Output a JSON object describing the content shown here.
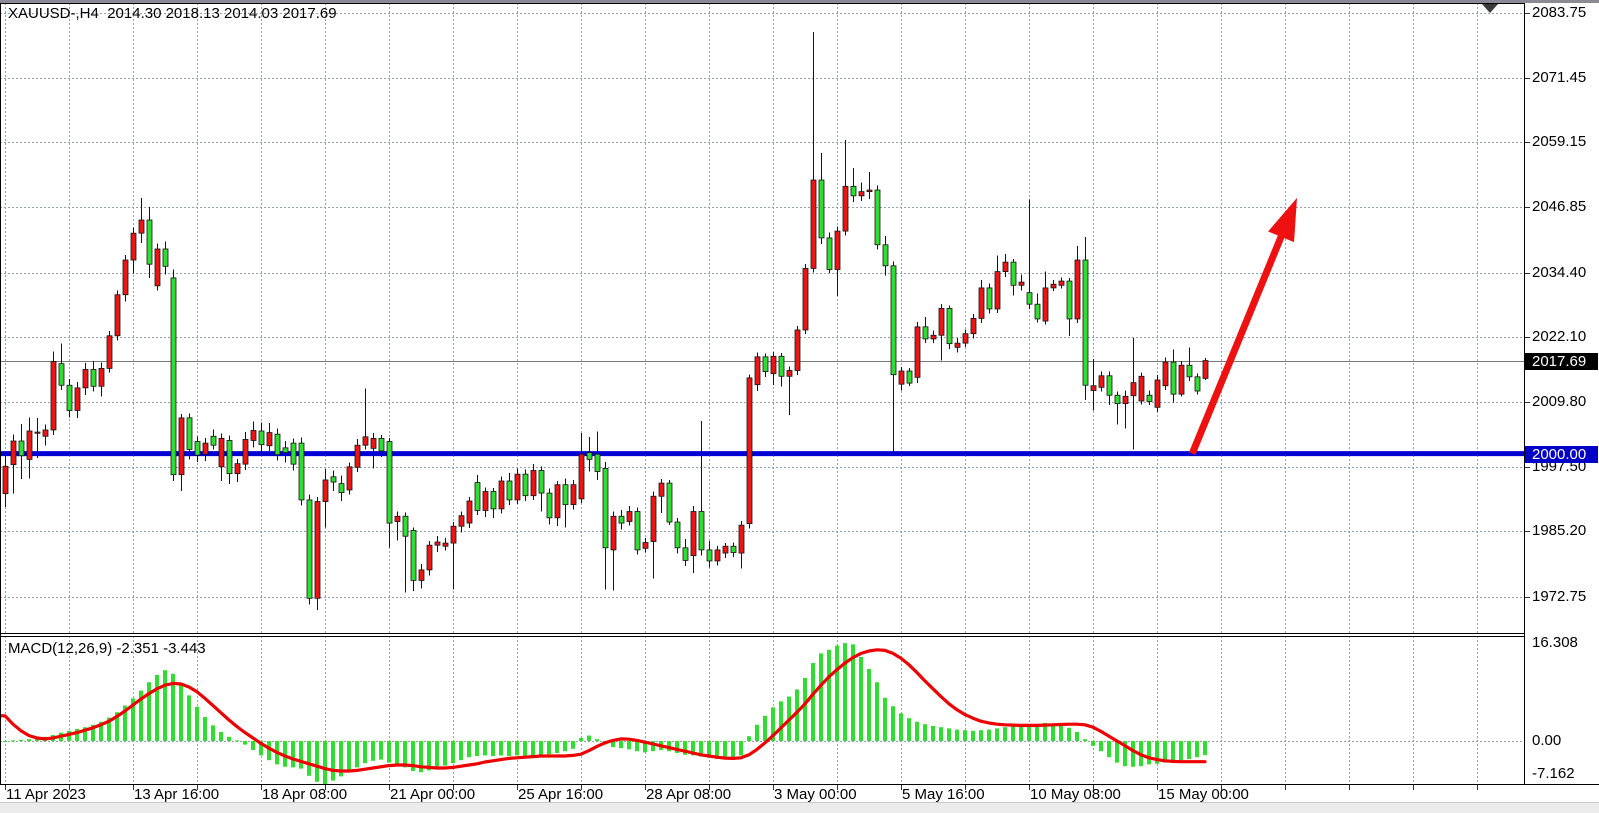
{
  "title": {
    "symbol_period": "XAUUSD-,H4",
    "ohlc": "2014.30 2018.13 2014.03 2017.69"
  },
  "chart_data": {
    "type": "candlestick",
    "title": "XAUUSD-,H4 2014.30 2018.13 2014.03 2017.69",
    "legend_position": "top-left",
    "grid": true,
    "price_axis": {
      "labels": [
        "2083.75",
        "2071.45",
        "2059.15",
        "2046.85",
        "2034.40",
        "2022.10",
        "2009.80",
        "1997.50",
        "1985.20",
        "1972.75"
      ],
      "values": [
        2083.75,
        2071.45,
        2059.15,
        2046.85,
        2034.4,
        2022.1,
        2009.8,
        1997.5,
        1985.2,
        1972.75
      ],
      "current_price": {
        "label": "2017.69",
        "value": 2017.69
      },
      "hline": {
        "label": "2000.00",
        "value": 2000.0
      }
    },
    "time_axis": {
      "labels": [
        "11 Apr 2023",
        "13 Apr 16:00",
        "18 Apr 08:00",
        "21 Apr 00:00",
        "25 Apr 16:00",
        "28 Apr 08:00",
        "3 May 00:00",
        "5 May 16:00",
        "10 May 08:00",
        "15 May 00:00"
      ],
      "bars_per_label": 16
    },
    "candles": [
      [
        1992.4,
        1999.9,
        1989.9,
        1997.6
      ],
      [
        1997.9,
        2003.6,
        1992.4,
        2002.4
      ],
      [
        2002.4,
        2005.6,
        1995.2,
        1999.6
      ],
      [
        1998.9,
        2006.9,
        1995.3,
        2004.3
      ],
      [
        2003.9,
        2006.8,
        1999.2,
        2004.1
      ],
      [
        2003.3,
        2005.5,
        2001.5,
        2004.5
      ],
      [
        2004.5,
        2019.4,
        2003.5,
        2017.5
      ],
      [
        2017.1,
        2020.9,
        2012.1,
        2013.0
      ],
      [
        2013.0,
        2014.2,
        2006.9,
        2008.2
      ],
      [
        2008.2,
        2013.6,
        2006.8,
        2012.5
      ],
      [
        2012.5,
        2017.2,
        2011.1,
        2016.0
      ],
      [
        2016.0,
        2017.6,
        2011.8,
        2012.8
      ],
      [
        2012.8,
        2017.3,
        2010.9,
        2016.2
      ],
      [
        2016.2,
        2023.3,
        2015.4,
        2022.4
      ],
      [
        2022.4,
        2031.0,
        2021.5,
        2030.2
      ],
      [
        2030.2,
        2037.8,
        2028.9,
        2036.8
      ],
      [
        2036.8,
        2043.0,
        2034.2,
        2041.9
      ],
      [
        2041.9,
        2048.6,
        2040.0,
        2044.4
      ],
      [
        2044.4,
        2046.9,
        2033.4,
        2036.0
      ],
      [
        2031.9,
        2039.9,
        2031.0,
        2038.9
      ],
      [
        2038.9,
        2040.3,
        2034.0,
        2035.6
      ],
      [
        2033.4,
        2035.0,
        1994.8,
        1996.0
      ],
      [
        1996.0,
        2007.5,
        1992.9,
        2006.8
      ],
      [
        2006.8,
        2007.6,
        1998.9,
        2000.8
      ],
      [
        2002.3,
        2003.3,
        1998.4,
        1999.7
      ],
      [
        1999.9,
        2003.0,
        1998.6,
        2002.0
      ],
      [
        2003.3,
        2004.6,
        2000.8,
        2001.6
      ],
      [
        1997.5,
        2003.8,
        1994.8,
        2002.9
      ],
      [
        2002.5,
        2003.4,
        1994.2,
        1996.2
      ],
      [
        1996.2,
        1999.0,
        1994.6,
        1998.1
      ],
      [
        1998.0,
        2004.1,
        1996.9,
        2002.7
      ],
      [
        2002.5,
        2006.1,
        2001.2,
        2004.4
      ],
      [
        2004.3,
        2005.9,
        2000.0,
        2001.7
      ],
      [
        2001.5,
        2005.8,
        2000.5,
        2004.0
      ],
      [
        2003.7,
        2004.8,
        1998.7,
        1999.8
      ],
      [
        2001.1,
        2002.4,
        1998.3,
        2000.2
      ],
      [
        2002.0,
        2002.9,
        1996.8,
        1998.0
      ],
      [
        2002.0,
        2003.1,
        1990.1,
        1991.2
      ],
      [
        1991.2,
        1992.2,
        1971.3,
        1972.5
      ],
      [
        1972.5,
        1991.8,
        1970.3,
        1990.9
      ],
      [
        1990.9,
        1997.1,
        1986.0,
        1995.0
      ],
      [
        1995.6,
        1996.8,
        1992.9,
        1994.6
      ],
      [
        1994.3,
        1995.8,
        1991.0,
        1992.6
      ],
      [
        1993.1,
        1998.3,
        1992.2,
        1997.5
      ],
      [
        1997.4,
        2002.8,
        1996.5,
        2001.6
      ],
      [
        2001.6,
        2012.4,
        2000.8,
        2003.2
      ],
      [
        2001.0,
        2003.9,
        1997.2,
        2002.9
      ],
      [
        2002.9,
        2003.5,
        1999.4,
        2000.5
      ],
      [
        2002.3,
        2003.0,
        1982.2,
        1986.8
      ],
      [
        1987.1,
        1989.0,
        1983.5,
        1988.1
      ],
      [
        1988.1,
        1988.8,
        1973.6,
        1984.3
      ],
      [
        1985.4,
        1986.0,
        1973.9,
        1975.9
      ],
      [
        1975.9,
        1979.0,
        1974.4,
        1977.9
      ],
      [
        1977.9,
        1983.4,
        1976.8,
        1982.6
      ],
      [
        1982.6,
        1984.3,
        1981.3,
        1983.2
      ],
      [
        1982.4,
        1984.0,
        1981.6,
        1983.0
      ],
      [
        1983.0,
        1987.0,
        1974.2,
        1986.2
      ],
      [
        1986.2,
        1989.0,
        1985.0,
        1988.2
      ],
      [
        1986.8,
        1991.8,
        1985.9,
        1991.0
      ],
      [
        1994.5,
        1995.9,
        1988.3,
        1989.2
      ],
      [
        1989.2,
        1993.6,
        1988.0,
        1992.8
      ],
      [
        1992.8,
        1993.5,
        1987.8,
        1989.5
      ],
      [
        1989.5,
        1995.7,
        1988.6,
        1994.8
      ],
      [
        1994.8,
        1996.3,
        1990.2,
        1991.2
      ],
      [
        1991.2,
        1997.2,
        1990.4,
        1996.1
      ],
      [
        1996.1,
        1997.0,
        1991.0,
        1992.0
      ],
      [
        1992.0,
        1998.0,
        1991.2,
        1996.8
      ],
      [
        1996.8,
        1997.6,
        1989.0,
        1992.5
      ],
      [
        1992.5,
        1993.4,
        1986.5,
        1987.8
      ],
      [
        1987.8,
        1994.8,
        1986.2,
        1994.1
      ],
      [
        1994.1,
        1995.3,
        1986.0,
        1990.3
      ],
      [
        1990.3,
        1995.0,
        1989.4,
        1994.1
      ],
      [
        1991.4,
        2003.9,
        1990.6,
        1999.9
      ],
      [
        2000.2,
        2003.2,
        1996.6,
        1998.9
      ],
      [
        1999.9,
        2004.2,
        1995.0,
        1996.6
      ],
      [
        1997.2,
        1998.4,
        1974.2,
        1982.1
      ],
      [
        1981.7,
        1989.0,
        1974.0,
        1988.1
      ],
      [
        1988.1,
        1989.3,
        1985.6,
        1986.8
      ],
      [
        1987.1,
        1990.0,
        1986.3,
        1989.0
      ],
      [
        1989.0,
        1989.8,
        1980.8,
        1981.7
      ],
      [
        1982.0,
        1984.0,
        1981.2,
        1983.1
      ],
      [
        1983.3,
        1992.8,
        1976.3,
        1991.9
      ],
      [
        1991.9,
        1995.2,
        1988.7,
        1994.4
      ],
      [
        1994.4,
        1995.0,
        1986.4,
        1987.0
      ],
      [
        1987.0,
        1987.8,
        1981.0,
        1982.1
      ],
      [
        1982.1,
        1983.8,
        1978.6,
        1979.7
      ],
      [
        1980.6,
        1990.0,
        1977.3,
        1989.0
      ],
      [
        1989.0,
        2006.2,
        1980.6,
        1981.7
      ],
      [
        1981.7,
        1983.4,
        1978.4,
        1979.6
      ],
      [
        1979.6,
        1982.4,
        1978.7,
        1981.7
      ],
      [
        1981.1,
        1983.0,
        1980.2,
        1982.4
      ],
      [
        1982.4,
        1983.1,
        1980.4,
        1981.2
      ],
      [
        1981.1,
        1987.2,
        1978.2,
        1986.4
      ],
      [
        1986.7,
        2015.0,
        1985.8,
        2014.4
      ],
      [
        2013.1,
        2019.2,
        2011.9,
        2018.4
      ],
      [
        2018.4,
        2019.0,
        2014.6,
        2015.6
      ],
      [
        2015.2,
        2019.3,
        2013.0,
        2018.5
      ],
      [
        2018.5,
        2019.1,
        2012.8,
        2014.7
      ],
      [
        2014.7,
        2016.6,
        2007.3,
        2015.8
      ],
      [
        2015.8,
        2024.3,
        2014.9,
        2023.5
      ],
      [
        2023.5,
        2036.0,
        2022.7,
        2035.2
      ],
      [
        2035.2,
        2080.1,
        2034.4,
        2052.0
      ],
      [
        2052.0,
        2057.1,
        2039.8,
        2041.0
      ],
      [
        2041.0,
        2042.0,
        2034.3,
        2035.0
      ],
      [
        2035.0,
        2043.2,
        2030.0,
        2042.3
      ],
      [
        2042.3,
        2059.6,
        2041.5,
        2050.8
      ],
      [
        2050.8,
        2054.3,
        2047.8,
        2049.0
      ],
      [
        2049.0,
        2051.5,
        2048.0,
        2049.8
      ],
      [
        2049.8,
        2053.5,
        2048.4,
        2050.1
      ],
      [
        2050.1,
        2051.0,
        2038.8,
        2039.7
      ],
      [
        2039.7,
        2041.4,
        2033.9,
        2035.7
      ],
      [
        2035.7,
        2036.5,
        1999.7,
        2015.0
      ],
      [
        2013.2,
        2016.5,
        2012.0,
        2015.7
      ],
      [
        2015.7,
        2016.3,
        2012.9,
        2013.4
      ],
      [
        2014.5,
        2025.0,
        2013.4,
        2024.1
      ],
      [
        2024.1,
        2026.0,
        2021.0,
        2021.8
      ],
      [
        2021.8,
        2023.4,
        2021.0,
        2022.5
      ],
      [
        2022.5,
        2028.4,
        2017.7,
        2027.6
      ],
      [
        2027.6,
        2028.2,
        2019.9,
        2020.9
      ],
      [
        2020.2,
        2022.0,
        2019.2,
        2021.0
      ],
      [
        2021.0,
        2023.6,
        2020.3,
        2022.8
      ],
      [
        2022.8,
        2026.5,
        2021.9,
        2025.7
      ],
      [
        2025.7,
        2033.0,
        2024.8,
        2031.5
      ],
      [
        2031.5,
        2032.3,
        2026.6,
        2027.5
      ],
      [
        2027.5,
        2037.7,
        2026.7,
        2034.6
      ],
      [
        2034.6,
        2037.9,
        2033.6,
        2036.4
      ],
      [
        2036.4,
        2037.0,
        2030.1,
        2032.0
      ],
      [
        2032.0,
        2034.0,
        2031.0,
        2032.6
      ],
      [
        2030.6,
        2048.3,
        2027.5,
        2028.4
      ],
      [
        2028.4,
        2030.4,
        2024.9,
        2025.6
      ],
      [
        2025.2,
        2034.6,
        2024.5,
        2031.5
      ],
      [
        2031.5,
        2033.0,
        2030.9,
        2032.2
      ],
      [
        2032.0,
        2033.5,
        2031.4,
        2032.8
      ],
      [
        2032.8,
        2033.4,
        2022.4,
        2025.6
      ],
      [
        2025.6,
        2039.5,
        2024.8,
        2036.8
      ],
      [
        2036.8,
        2041.2,
        2010.2,
        2013.0
      ],
      [
        2012.0,
        2018.0,
        2008.2,
        2012.9
      ],
      [
        2012.6,
        2015.6,
        2011.8,
        2014.8
      ],
      [
        2014.8,
        2015.6,
        2009.2,
        2011.1
      ],
      [
        2011.1,
        2011.8,
        2005.5,
        2009.5
      ],
      [
        2009.5,
        2012.0,
        2004.8,
        2010.9
      ],
      [
        2011.0,
        2022.0,
        2000.8,
        2013.5
      ],
      [
        2010.0,
        2015.4,
        2009.3,
        2014.7
      ],
      [
        2011.1,
        2012.0,
        2009.2,
        2009.9
      ],
      [
        2008.8,
        2014.9,
        2007.9,
        2014.0
      ],
      [
        2012.9,
        2018.3,
        2012.1,
        2017.4
      ],
      [
        2017.4,
        2019.8,
        2009.7,
        2011.3
      ],
      [
        2011.3,
        2017.6,
        2010.9,
        2016.8
      ],
      [
        2016.8,
        2020.2,
        2013.8,
        2014.6
      ],
      [
        2014.6,
        2015.2,
        2011.2,
        2011.9
      ],
      [
        2014.3,
        2018.13,
        2014.03,
        2017.69
      ]
    ],
    "macd": {
      "label": "MACD(12,26,9)",
      "macd_value": "-2.351",
      "signal_value": "-3.443",
      "scale_labels": {
        "max": "16.308",
        "zero": "0.00",
        "min": "-7.162"
      },
      "scale_values": {
        "max": 16.308,
        "zero": 0.0,
        "min": -7.162
      },
      "hist": [
        0.0,
        0.1,
        0.2,
        0.3,
        0.5,
        0.7,
        1.0,
        1.4,
        1.7,
        2.0,
        2.3,
        2.7,
        3.2,
        3.9,
        4.8,
        5.9,
        7.1,
        8.4,
        9.8,
        11.0,
        11.8,
        11.2,
        9.6,
        7.6,
        5.7,
        4.0,
        2.6,
        1.5,
        0.7,
        0.1,
        -0.6,
        -1.5,
        -2.4,
        -3.2,
        -3.9,
        -4.3,
        -4.4,
        -4.6,
        -5.8,
        -6.8,
        -7.16,
        -6.6,
        -5.9,
        -5.2,
        -4.4,
        -3.7,
        -3.3,
        -3.1,
        -3.6,
        -3.9,
        -4.4,
        -5.0,
        -5.2,
        -4.9,
        -4.5,
        -4.1,
        -3.7,
        -3.2,
        -2.7,
        -2.5,
        -2.4,
        -2.5,
        -2.4,
        -2.5,
        -2.4,
        -2.5,
        -2.4,
        -2.3,
        -2.2,
        -2.0,
        -1.7,
        -1.3,
        0.5,
        0.9,
        0.3,
        -0.6,
        -1.0,
        -1.2,
        -1.4,
        -1.7,
        -1.9,
        -1.7,
        -1.5,
        -1.7,
        -2.0,
        -2.3,
        -2.4,
        -2.6,
        -2.8,
        -3.0,
        -2.9,
        -2.8,
        -2.4,
        0.8,
        2.7,
        4.2,
        5.6,
        6.6,
        7.4,
        8.6,
        10.5,
        13.0,
        14.6,
        15.2,
        15.9,
        16.31,
        16.1,
        14.0,
        12.0,
        9.8,
        7.2,
        5.8,
        4.6,
        3.8,
        3.2,
        2.8,
        2.5,
        2.3,
        2.1,
        1.9,
        1.8,
        1.7,
        1.8,
        1.9,
        2.1,
        2.3,
        2.5,
        2.6,
        2.7,
        2.8,
        3.0,
        2.9,
        2.6,
        2.2,
        1.5,
        0.3,
        -0.8,
        -1.7,
        -2.7,
        -3.6,
        -4.2,
        -4.3,
        -4.2,
        -3.9,
        -3.8,
        -3.6,
        -3.4,
        -3.2,
        -3.0,
        -2.7,
        -2.351
      ],
      "signal": [
        4.2,
        2.8,
        1.7,
        0.9,
        0.5,
        0.35,
        0.5,
        0.8,
        1.1,
        1.4,
        1.8,
        2.2,
        2.7,
        3.3,
        4.1,
        5.0,
        6.0,
        7.0,
        7.9,
        8.7,
        9.3,
        9.6,
        9.5,
        9.0,
        8.2,
        7.1,
        5.9,
        4.7,
        3.5,
        2.4,
        1.4,
        0.5,
        -0.4,
        -1.2,
        -1.9,
        -2.5,
        -3.0,
        -3.4,
        -3.8,
        -4.2,
        -4.6,
        -4.9,
        -5.0,
        -5.0,
        -4.9,
        -4.7,
        -4.5,
        -4.3,
        -4.1,
        -4.0,
        -4.0,
        -4.1,
        -4.3,
        -4.4,
        -4.5,
        -4.5,
        -4.4,
        -4.2,
        -4.0,
        -3.8,
        -3.5,
        -3.3,
        -3.1,
        -2.9,
        -2.8,
        -2.7,
        -2.6,
        -2.5,
        -2.5,
        -2.5,
        -2.5,
        -2.4,
        -2.2,
        -1.6,
        -0.9,
        -0.3,
        0.1,
        0.35,
        0.3,
        0.1,
        -0.2,
        -0.5,
        -0.8,
        -1.1,
        -1.4,
        -1.7,
        -2.0,
        -2.3,
        -2.5,
        -2.7,
        -2.85,
        -2.9,
        -2.8,
        -2.3,
        -1.4,
        -0.3,
        0.9,
        2.2,
        3.5,
        4.8,
        6.2,
        7.8,
        9.3,
        10.7,
        11.9,
        13.0,
        13.9,
        14.6,
        15.0,
        15.2,
        15.1,
        14.6,
        13.8,
        12.7,
        11.4,
        10.0,
        8.7,
        7.4,
        6.2,
        5.2,
        4.4,
        3.8,
        3.3,
        3.0,
        2.8,
        2.7,
        2.65,
        2.6,
        2.6,
        2.6,
        2.65,
        2.7,
        2.75,
        2.8,
        2.8,
        2.7,
        2.3,
        1.6,
        0.8,
        0.0,
        -0.8,
        -1.6,
        -2.3,
        -2.8,
        -3.1,
        -3.3,
        -3.4,
        -3.45,
        -3.45,
        -3.45,
        -3.443
      ]
    },
    "annotations": {
      "arrow": {
        "kind": "trend-arrow-up",
        "start_bar": 148.4,
        "start_price": 2000.0,
        "end_bar": 161.5,
        "end_price": 2048.6
      },
      "shift_marker": {
        "kind": "chart-shift-marker"
      }
    },
    "colors": {
      "bull_candle": "#ee1414",
      "bear_candle": "#30dd30",
      "wick": "#141414",
      "grid": "#95a0b0",
      "hline_blue": "#0000d4",
      "current_price_line": "#7a7a7a",
      "macd_hist": "#30dd30",
      "macd_signal": "#ee0000",
      "arrow": "#ee1111",
      "badge_current_bg": "#000000",
      "badge_hline_bg": "#0101c8",
      "border": "#000000"
    }
  }
}
